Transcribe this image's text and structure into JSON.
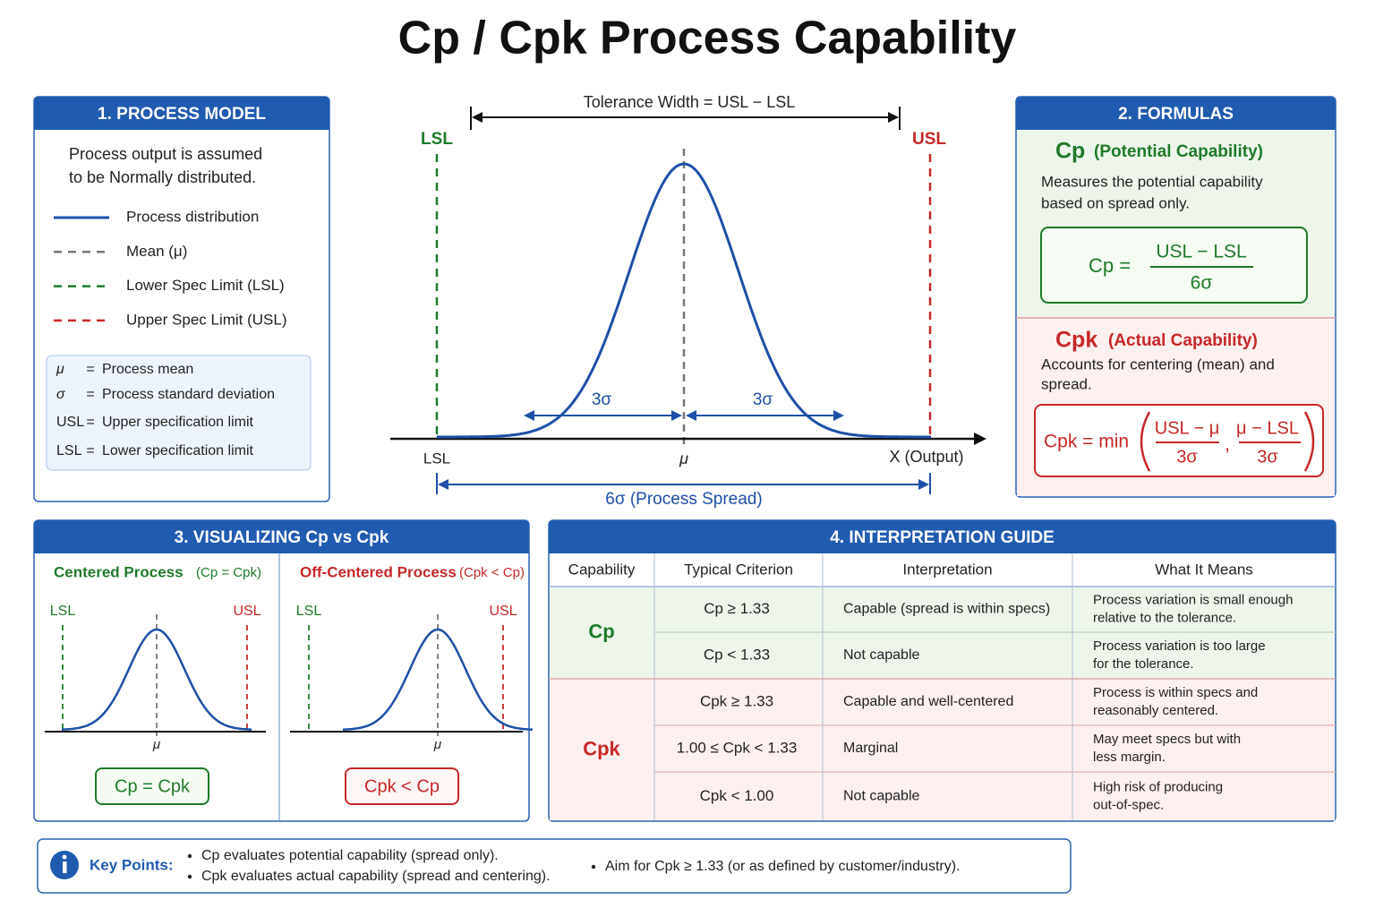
{
  "title": "Cp / Cpk Process Capability",
  "process_model": {
    "heading": "1.  PROCESS MODEL",
    "intro": [
      "Process output is assumed",
      "to be Normally distributed."
    ],
    "legend": [
      "Process distribution",
      "Mean (μ)",
      "Lower Spec Limit (LSL)",
      "Upper Spec Limit (USL)"
    ],
    "definitions": {
      "equals": "=",
      "items": [
        {
          "symbol": "μ",
          "text": "Process mean"
        },
        {
          "symbol": "σ",
          "text": "Process standard deviation"
        },
        {
          "symbol": "USL",
          "text": "Upper specification limit"
        },
        {
          "symbol": "LSL",
          "text": "Lower specification limit"
        }
      ]
    }
  },
  "main_chart": {
    "tolerance": "Tolerance Width = USL − LSL",
    "lsl": "LSL",
    "usl": "USL",
    "mean": "μ",
    "sigma": "3σ",
    "x_axis": "X (Output)",
    "spread": "6σ  (Process Spread)"
  },
  "formulas": {
    "heading": "2.  FORMULAS",
    "cp": {
      "name": "Cp",
      "subtitle": "(Potential Capability)",
      "description": [
        "Measures the potential capability",
        "based on spread only."
      ],
      "lhs": "Cp  =",
      "numerator": "USL − LSL",
      "denominator": "6σ"
    },
    "cpk": {
      "name": "Cpk",
      "subtitle": "(Actual Capability)",
      "description": [
        "Accounts for centering (mean) and",
        "spread."
      ],
      "lhs": "Cpk  =  min",
      "separator": ",",
      "terms": [
        {
          "numerator": "USL − μ",
          "denominator": "3σ"
        },
        {
          "numerator": "μ − LSL",
          "denominator": "3σ"
        }
      ]
    }
  },
  "visualizing": {
    "heading": "3.  VISUALIZING Cp vs Cpk",
    "panels": [
      {
        "title": "Centered Process",
        "note": "(Cp = Cpk)",
        "badge": "Cp = Cpk"
      },
      {
        "title": "Off-Centered Process",
        "note": "(Cpk < Cp)",
        "badge": "Cpk < Cp"
      }
    ]
  },
  "interpretation": {
    "heading": "4.  INTERPRETATION GUIDE",
    "columns": [
      "Capability",
      "Typical Criterion",
      "Interpretation",
      "What It Means"
    ],
    "groups": [
      {
        "capability": "Cp",
        "rows": [
          {
            "criterion": "Cp  ≥  1.33",
            "interpretation": "Capable (spread is within specs)",
            "meaning": [
              "Process variation is small enough",
              "relative to the tolerance."
            ]
          },
          {
            "criterion": "Cp  <  1.33",
            "interpretation": "Not capable",
            "meaning": [
              "Process variation is too large",
              "for the tolerance."
            ]
          }
        ]
      },
      {
        "capability": "Cpk",
        "rows": [
          {
            "criterion": "Cpk  ≥  1.33",
            "interpretation": "Capable and well-centered",
            "meaning": [
              "Process is within specs and",
              "reasonably centered."
            ]
          },
          {
            "criterion": "1.00 ≤ Cpk < 1.33",
            "interpretation": "Marginal",
            "meaning": [
              "May meet specs but with",
              "less margin."
            ]
          },
          {
            "criterion": "Cpk  <  1.00",
            "interpretation": "Not capable",
            "meaning": [
              "High risk of producing",
              "out-of-spec."
            ]
          }
        ]
      }
    ]
  },
  "key_points": {
    "label": "Key Points:",
    "items": [
      "Cp evaluates potential capability (spread only).",
      "Cpk evaluates actual capability (spread and centering).",
      "Aim for Cpk ≥ 1.33 (or as defined by customer/industry)."
    ]
  }
}
